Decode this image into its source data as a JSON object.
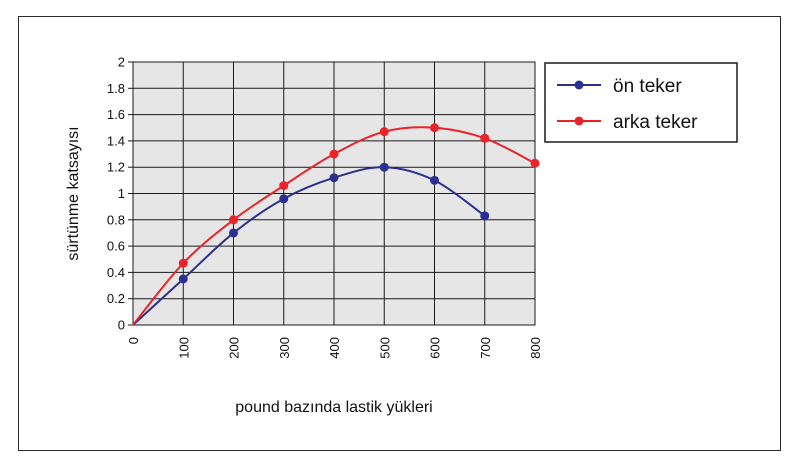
{
  "chart_data": {
    "type": "line",
    "title": "",
    "xlabel": "pound bazında lastik yükleri",
    "ylabel": "sürtünme katsayısı",
    "xlim": [
      0,
      800
    ],
    "ylim": [
      0,
      2
    ],
    "x_ticks": [
      "0",
      "100",
      "200",
      "300",
      "400",
      "500",
      "600",
      "700",
      "800"
    ],
    "y_ticks": [
      "0",
      "0.2",
      "0.4",
      "0.6",
      "0.8",
      "1",
      "1.2",
      "1.4",
      "1.6",
      "1.8",
      "2"
    ],
    "grid": true,
    "legend_position": "right",
    "background_color": "#e6e6e6",
    "series": [
      {
        "name": "ön teker",
        "color": "#2b2f8f",
        "x": [
          0,
          100,
          200,
          300,
          400,
          500,
          600,
          700
        ],
        "y": [
          0,
          0.35,
          0.7,
          0.96,
          1.12,
          1.2,
          1.1,
          0.83
        ]
      },
      {
        "name": "arka teker",
        "color": "#e8232a",
        "x": [
          0,
          100,
          200,
          300,
          400,
          500,
          600,
          700,
          800
        ],
        "y": [
          0,
          0.47,
          0.8,
          1.06,
          1.3,
          1.47,
          1.5,
          1.42,
          1.23
        ]
      }
    ]
  }
}
